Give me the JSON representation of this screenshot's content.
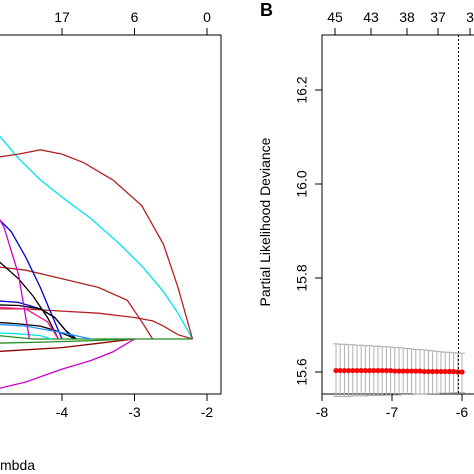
{
  "chart_data": [
    {
      "panel": "A",
      "type": "line",
      "title": "",
      "xlabel": "Log Lambda",
      "ylabel": "",
      "x_ticks": [
        -4,
        -3,
        -2
      ],
      "top_ticks": [
        "17",
        "6",
        "0"
      ],
      "note": "coefficient path plot, cropped at left edge",
      "series_colors": [
        "#00e5ee",
        "#b22222",
        "#0000cd",
        "#000000",
        "#228b22",
        "#cd00cd",
        "#ff1493",
        "#8b0000",
        "#1e90ff"
      ],
      "series": [
        {
          "color": "#00e5ee",
          "x": [
            -5.0,
            -4.6,
            -4.3,
            -4.0,
            -3.6,
            -3.2,
            -2.9,
            -2.6,
            -2.4,
            -2.2
          ],
          "y": [
            0.5,
            0.42,
            0.37,
            0.33,
            0.28,
            0.22,
            0.17,
            0.11,
            0.06,
            0.0
          ]
        },
        {
          "color": "#b22222",
          "x": [
            -5.0,
            -4.6,
            -4.3,
            -4.0,
            -3.7,
            -3.3,
            -2.9,
            -2.6,
            -2.4,
            -2.2
          ],
          "y": [
            0.42,
            0.43,
            0.44,
            0.43,
            0.41,
            0.37,
            0.31,
            0.22,
            0.12,
            0.0
          ]
        },
        {
          "color": "#b22222",
          "x": [
            -5.0,
            -4.5,
            -4.0,
            -3.5,
            -3.0,
            -2.75,
            -2.6,
            -2.4,
            -2.2
          ],
          "y": [
            0.07,
            0.07,
            0.065,
            0.06,
            0.05,
            0.042,
            0.03,
            0.01,
            0.0
          ]
        },
        {
          "color": "#b22222",
          "x": [
            -5.0,
            -4.5,
            -4.0,
            -3.5,
            -3.1,
            -2.9,
            -2.75
          ],
          "y": [
            0.17,
            0.16,
            0.14,
            0.12,
            0.09,
            0.04,
            0.0
          ]
        },
        {
          "color": "#0000cd",
          "x": [
            -5.0,
            -4.7,
            -4.5,
            -4.3,
            -4.15,
            -4.0
          ],
          "y": [
            0.3,
            0.25,
            0.19,
            0.12,
            0.06,
            0.0
          ]
        },
        {
          "color": "#0000cd",
          "x": [
            -5.0,
            -4.6,
            -4.3,
            -4.1,
            -3.95,
            -3.85
          ],
          "y": [
            0.09,
            0.085,
            0.07,
            0.05,
            0.02,
            0.0
          ]
        },
        {
          "color": "#000000",
          "x": [
            -5.0,
            -4.8,
            -4.6,
            -4.4,
            -4.2,
            -4.05
          ],
          "y": [
            0.2,
            0.17,
            0.14,
            0.1,
            0.05,
            0.0
          ]
        },
        {
          "color": "#000000",
          "x": [
            -5.0,
            -4.6,
            -4.3,
            -4.1,
            -3.95,
            -3.8
          ],
          "y": [
            0.08,
            0.078,
            0.07,
            0.05,
            0.02,
            0.0
          ]
        },
        {
          "color": "#000000",
          "x": [
            -5.0,
            -4.6,
            -4.3,
            -4.1,
            -3.95,
            -3.8
          ],
          "y": [
            0.04,
            0.035,
            0.03,
            0.02,
            0.01,
            0.0
          ]
        },
        {
          "color": "#228b22",
          "x": [
            -5.0,
            -4.4,
            -3.8,
            -3.3,
            -3.0,
            -2.2
          ],
          "y": [
            0.01,
            0.0,
            0.0,
            0.0,
            0.0,
            0.0
          ]
        },
        {
          "color": "#cd00cd",
          "x": [
            -5.0,
            -4.5,
            -4.0,
            -3.6,
            -3.3,
            -3.0
          ],
          "y": [
            -0.12,
            -0.1,
            -0.07,
            -0.05,
            -0.03,
            0.0
          ]
        },
        {
          "color": "#ff1493",
          "x": [
            -5.0,
            -4.5,
            -4.2,
            -4.05
          ],
          "y": [
            0.075,
            0.07,
            0.04,
            0.0
          ]
        },
        {
          "color": "#1e90ff",
          "x": [
            -5.0,
            -4.5,
            -4.0,
            -3.6
          ],
          "y": [
            0.035,
            0.03,
            0.015,
            0.0
          ]
        },
        {
          "color": "#8b0000",
          "x": [
            -5.0,
            -4.5,
            -4.0,
            -3.5,
            -3.0
          ],
          "y": [
            -0.03,
            -0.025,
            -0.02,
            -0.01,
            0.0
          ]
        },
        {
          "color": "#228b22",
          "x": [
            -5.0,
            -4.4,
            -3.8,
            -3.3,
            -3.0
          ],
          "y": [
            -0.01,
            -0.008,
            -0.005,
            -0.002,
            0.0
          ]
        },
        {
          "color": "#00e5ee",
          "x": [
            -5.0,
            -4.6,
            -4.3,
            -4.15
          ],
          "y": [
            0.015,
            0.012,
            0.008,
            0.0
          ]
        },
        {
          "color": "#cd00cd",
          "x": [
            -5.0,
            -4.8,
            -4.6,
            -4.45
          ],
          "y": [
            0.32,
            0.26,
            0.15,
            0.0
          ]
        }
      ]
    },
    {
      "panel": "B",
      "type": "scatter",
      "title": "",
      "xlabel": "",
      "ylabel": "Partial Likelihood Deviance",
      "xlim": [
        -8,
        -6.0
      ],
      "ylim": [
        15.56,
        16.31
      ],
      "x_ticks": [
        -8,
        -7,
        -6
      ],
      "x_tick_labels": [
        "-8",
        "-7",
        "-6"
      ],
      "y_ticks": [
        15.6,
        15.8,
        16.0,
        16.2
      ],
      "y_tick_labels": [
        "15.6",
        "15.8",
        "16.0",
        "16.2"
      ],
      "top_ticks": [
        "45",
        "43",
        "38",
        "37",
        "3"
      ],
      "vline_x": -6.05,
      "point_color": "#ff0000",
      "errorbar_color": "#b0b0b0",
      "x": [
        -7.8,
        -7.74,
        -7.68,
        -7.62,
        -7.56,
        -7.5,
        -7.44,
        -7.38,
        -7.32,
        -7.26,
        -7.2,
        -7.14,
        -7.08,
        -7.02,
        -6.96,
        -6.9,
        -6.84,
        -6.78,
        -6.72,
        -6.66,
        -6.6,
        -6.54,
        -6.48,
        -6.42,
        -6.36,
        -6.3,
        -6.24,
        -6.18,
        -6.12,
        -6.06,
        -6.0
      ],
      "y": [
        15.603,
        15.603,
        15.603,
        15.603,
        15.603,
        15.603,
        15.603,
        15.603,
        15.603,
        15.603,
        15.603,
        15.603,
        15.603,
        15.603,
        15.602,
        15.602,
        15.602,
        15.602,
        15.602,
        15.602,
        15.602,
        15.601,
        15.601,
        15.601,
        15.601,
        15.601,
        15.601,
        15.601,
        15.601,
        15.6,
        15.6
      ],
      "err_upper": [
        15.66,
        15.659,
        15.659,
        15.658,
        15.658,
        15.657,
        15.657,
        15.656,
        15.656,
        15.655,
        15.655,
        15.654,
        15.654,
        15.653,
        15.652,
        15.652,
        15.651,
        15.65,
        15.649,
        15.648,
        15.648,
        15.647,
        15.646,
        15.645,
        15.644,
        15.643,
        15.642,
        15.642,
        15.641,
        15.64,
        15.64
      ],
      "err_lower": [
        15.548,
        15.548,
        15.548,
        15.548,
        15.549,
        15.549,
        15.549,
        15.549,
        15.55,
        15.55,
        15.55,
        15.55,
        15.551,
        15.551,
        15.551,
        15.551,
        15.552,
        15.552,
        15.552,
        15.553,
        15.553,
        15.553,
        15.554,
        15.554,
        15.554,
        15.555,
        15.555,
        15.555,
        15.556,
        15.556,
        15.556
      ]
    }
  ],
  "labels": {
    "panel_b_letter": "B",
    "panel_a_xlabel": "mbda",
    "panel_a_top_labels": [
      "17",
      "6",
      "0"
    ],
    "panel_a_x_tick_labels": [
      "-4",
      "-3",
      "-2"
    ]
  }
}
